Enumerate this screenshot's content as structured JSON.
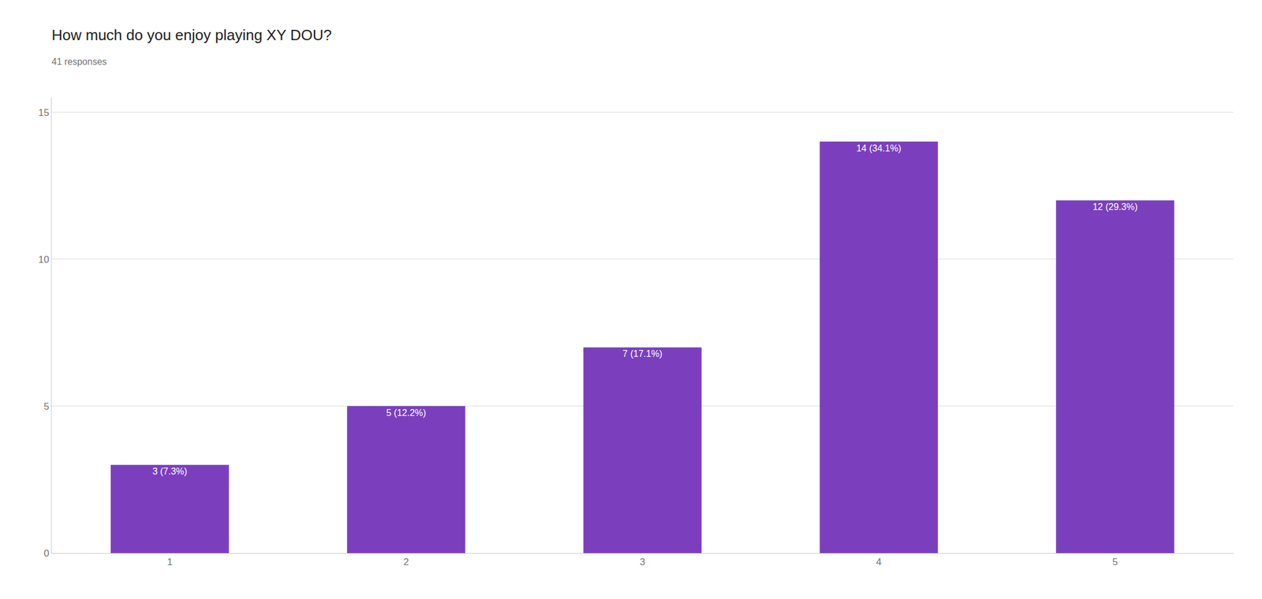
{
  "chart_data": {
    "type": "bar",
    "title": "How much do you enjoy playing XY DOU?",
    "subtitle": "41 responses",
    "categories": [
      1,
      2,
      3,
      4,
      5
    ],
    "values": [
      3,
      5,
      7,
      14,
      12
    ],
    "value_labels": [
      "3 (7.3%)",
      "5 (12.2%)",
      "7 (17.1%)",
      "14 (34.1%)",
      "12 (29.3%)"
    ],
    "color": "#7B3FBE",
    "ylim": [
      0,
      15.5
    ],
    "yticks": [
      0,
      5,
      10,
      15
    ],
    "grid": true
  }
}
